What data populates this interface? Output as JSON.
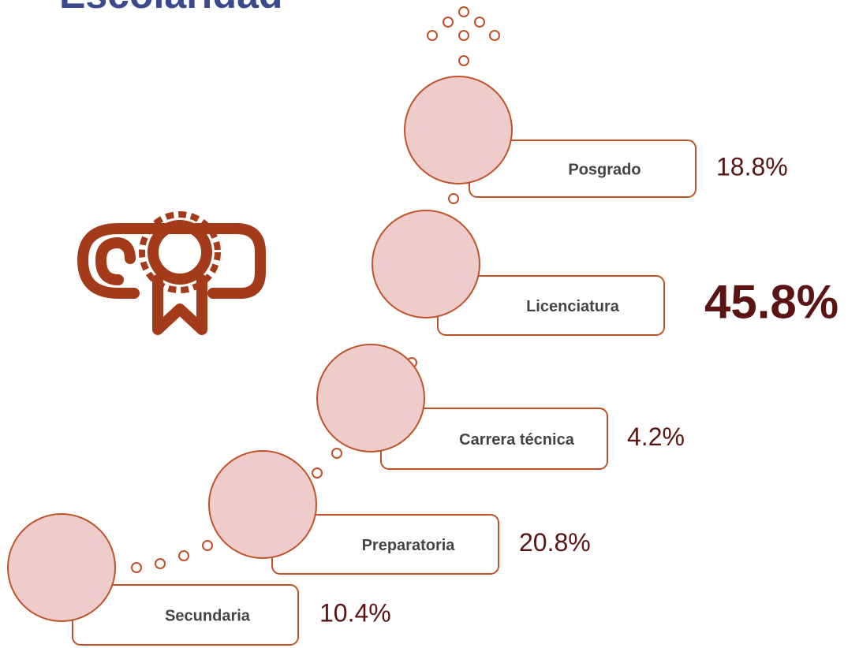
{
  "title": "Escolaridad",
  "items": [
    {
      "label": "Posgrado",
      "value": "18.8%"
    },
    {
      "label": "Licenciatura",
      "value": "45.8%"
    },
    {
      "label": "Carrera técnica",
      "value": "4.2%"
    },
    {
      "label": "Preparatoria",
      "value": "20.8%"
    },
    {
      "label": "Secundaria",
      "value": "10.4%"
    }
  ]
}
